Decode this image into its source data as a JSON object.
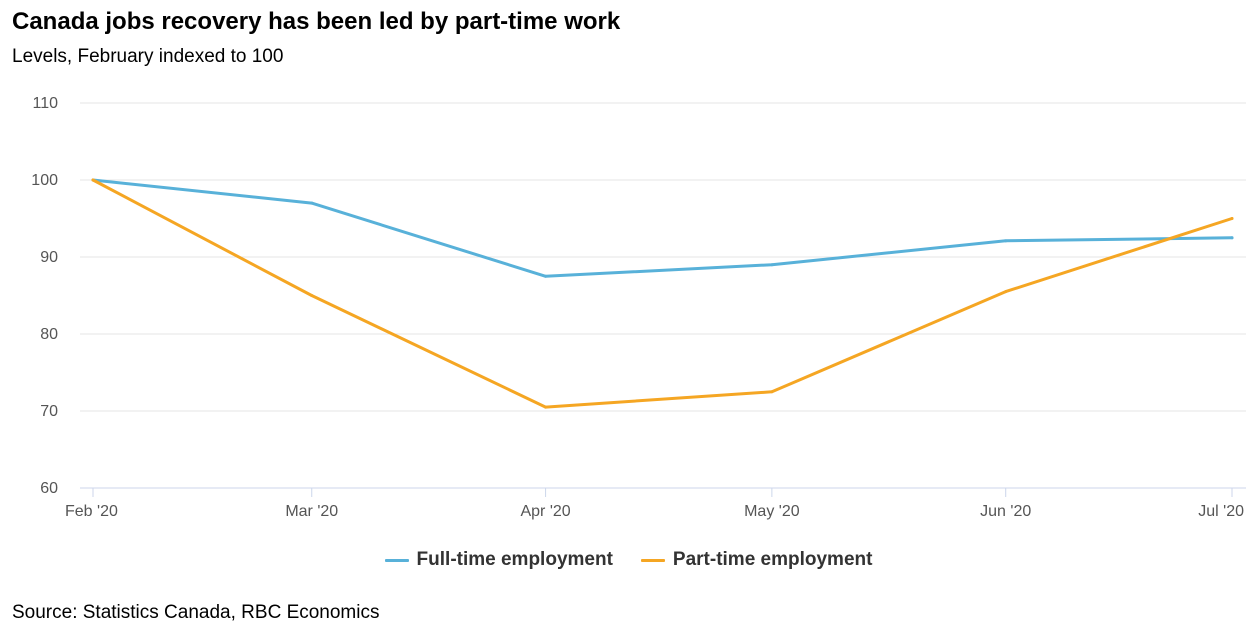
{
  "header": {
    "title": "Canada jobs recovery has been led by part-time work",
    "subtitle": "Levels, February indexed to 100"
  },
  "footer": {
    "source": "Source: Statistics Canada, RBC Economics"
  },
  "colors": {
    "full_time": "#58b1d9",
    "part_time": "#f5a623",
    "grid": "#e6e6e6",
    "axis": "#ccd6eb"
  },
  "chart_data": {
    "type": "line",
    "title": "Canada jobs recovery has been led by part-time work",
    "subtitle": "Levels, February indexed to 100",
    "xlabel": "",
    "ylabel": "",
    "categories": [
      "Feb '20",
      "Mar '20",
      "Apr '20",
      "May '20",
      "Jun '20",
      "Jul '20"
    ],
    "x_days": [
      0,
      29,
      60,
      90,
      121,
      151
    ],
    "yticks": [
      60,
      70,
      80,
      90,
      100,
      110
    ],
    "ylim": [
      60,
      110
    ],
    "grid": true,
    "legend": "bottom-center",
    "series": [
      {
        "name": "Full-time employment",
        "key": "full_time",
        "values": [
          100,
          97,
          87.5,
          89,
          92.1,
          92.5
        ]
      },
      {
        "name": "Part-time employment",
        "key": "part_time",
        "values": [
          100,
          85,
          70.5,
          72.5,
          85.5,
          95
        ]
      }
    ]
  }
}
